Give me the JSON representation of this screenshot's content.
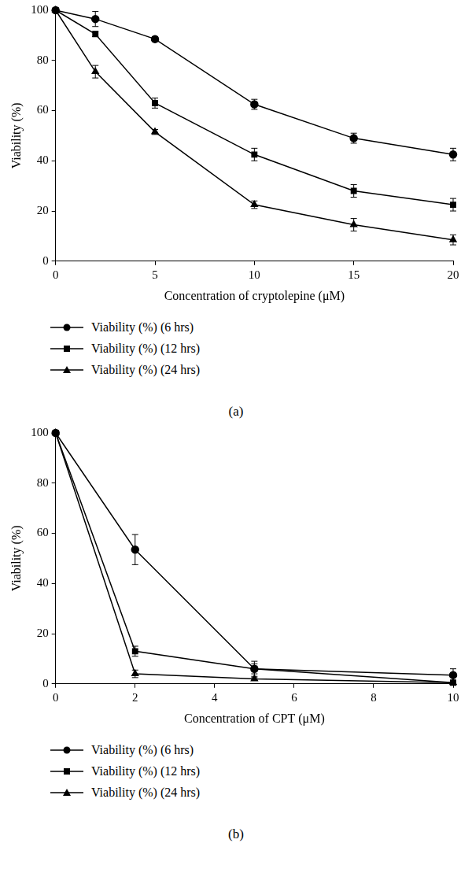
{
  "chart_data": [
    {
      "type": "line",
      "label": "(a)",
      "x_label": "Concentration of cryptolepine (μM)",
      "y_label": "Viability (%)",
      "x": [
        0,
        2,
        5,
        10,
        15,
        20
      ],
      "series": [
        {
          "name": "Viability (%) (6 hrs)",
          "color": "#000000",
          "marker": "circle",
          "values": [
            100,
            96.5,
            88.5,
            62.5,
            49,
            42.5
          ],
          "errors": [
            0,
            3,
            1,
            2,
            2,
            2.5
          ]
        },
        {
          "name": "Viability (%) (12 hrs)",
          "color": "#000000",
          "marker": "square",
          "values": [
            100,
            90.5,
            63,
            42.5,
            28,
            22.5
          ],
          "errors": [
            0,
            1,
            2,
            2.5,
            2.5,
            2.5
          ]
        },
        {
          "name": "Viability (%) (24 hrs)",
          "color": "#000000",
          "marker": "triangle",
          "values": [
            100,
            75.5,
            51.5,
            22.5,
            14.5,
            8.5
          ],
          "errors": [
            0,
            2.5,
            1,
            1.5,
            2.5,
            2
          ]
        }
      ],
      "xlim": [
        0,
        20
      ],
      "xticks": [
        0,
        5,
        10,
        15,
        20
      ],
      "ylim": [
        0,
        100
      ],
      "yticks": [
        0,
        20,
        40,
        60,
        80,
        100
      ],
      "grid": false,
      "legend": "bottom"
    },
    {
      "type": "line",
      "label": "(b)",
      "x_label": "Concentration of CPT (μM)",
      "y_label": "Viability (%)",
      "x": [
        0,
        2,
        5,
        10
      ],
      "series": [
        {
          "name": "Viability (%) (6 hrs)",
          "color": "#000000",
          "marker": "circle",
          "values": [
            100,
            53.5,
            6,
            3.5
          ],
          "errors": [
            0,
            6,
            3,
            2.5
          ]
        },
        {
          "name": "Viability (%) (12 hrs)",
          "color": "#000000",
          "marker": "square",
          "values": [
            100,
            13,
            6,
            0.5
          ],
          "errors": [
            0,
            2,
            2,
            0.5
          ]
        },
        {
          "name": "Viability (%) (24 hrs)",
          "color": "#000000",
          "marker": "triangle",
          "values": [
            100,
            4,
            2,
            0.5
          ],
          "errors": [
            0,
            1.5,
            0.5,
            0.3
          ]
        }
      ],
      "xlim": [
        0,
        10
      ],
      "xticks": [
        0,
        2,
        4,
        6,
        8,
        10
      ],
      "ylim": [
        0,
        100
      ],
      "yticks": [
        0,
        20,
        40,
        60,
        80,
        100
      ],
      "grid": false,
      "legend": "bottom"
    }
  ]
}
